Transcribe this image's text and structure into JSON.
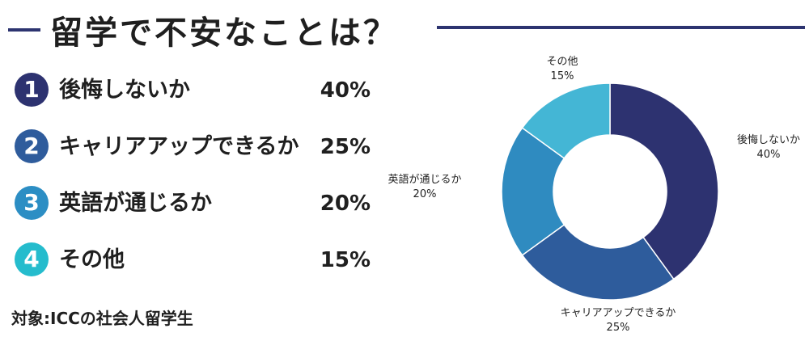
{
  "title": "留学で不安なことは？",
  "footnote": "対象:ICCの社会人留学生",
  "chart_data": {
    "type": "pie",
    "categories": [
      "後悔しないか",
      "キャリアアップできるか",
      "英語が通じるか",
      "その他"
    ],
    "values": [
      40,
      25,
      20,
      15
    ],
    "value_labels": [
      "40%",
      "25%",
      "20%",
      "15%"
    ],
    "numbers": [
      "1",
      "2",
      "3",
      "4"
    ],
    "colors": [
      "#2d3270",
      "#2e5c9c",
      "#2f8bc0",
      "#44b6d5"
    ],
    "badge_colors": [
      "#2d3270",
      "#2f5c9c",
      "#2c8ec4",
      "#25bccd"
    ],
    "hole": true
  }
}
